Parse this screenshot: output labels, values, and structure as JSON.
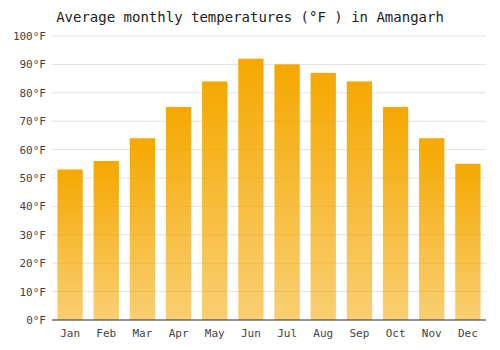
{
  "chart_data": {
    "type": "bar",
    "title": "Average monthly temperatures (°F ) in Amangarh",
    "categories": [
      "Jan",
      "Feb",
      "Mar",
      "Apr",
      "May",
      "Jun",
      "Jul",
      "Aug",
      "Sep",
      "Oct",
      "Nov",
      "Dec"
    ],
    "values": [
      53,
      56,
      64,
      75,
      84,
      92,
      90,
      87,
      84,
      75,
      64,
      55
    ],
    "color": "#F5A800",
    "ylim": [
      0,
      100
    ],
    "yticks": [
      {
        "value": 0,
        "label": "0°F"
      },
      {
        "value": 10,
        "label": "10°F"
      },
      {
        "value": 20,
        "label": "20°F"
      },
      {
        "value": 30,
        "label": "30°F"
      },
      {
        "value": 40,
        "label": "40°F"
      },
      {
        "value": 50,
        "label": "50°F"
      },
      {
        "value": 60,
        "label": "60°F"
      },
      {
        "value": 70,
        "label": "70°F"
      },
      {
        "value": 80,
        "label": "80°F"
      },
      {
        "value": 90,
        "label": "90°F"
      },
      {
        "value": 100,
        "label": "100°F"
      }
    ],
    "grid": true
  }
}
